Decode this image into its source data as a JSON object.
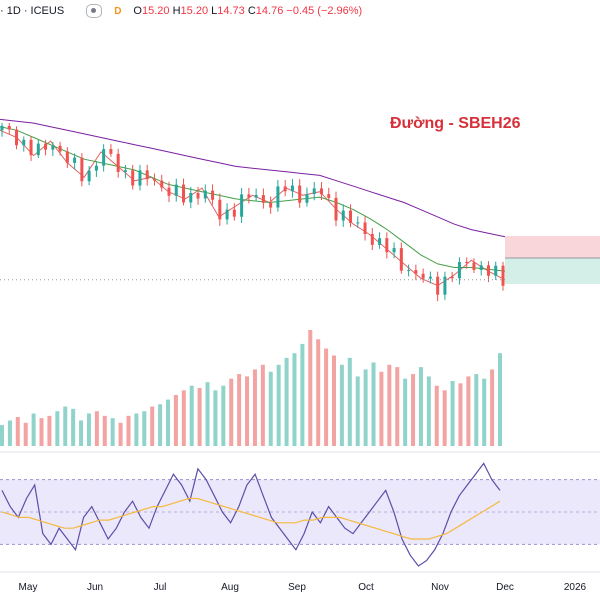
{
  "header": {
    "symbol": "· 1D · ICEUS",
    "badge": "D",
    "open_label": "O",
    "open": "15.20",
    "high_label": "H",
    "high": "15.20",
    "low_label": "L",
    "low": "14.73",
    "close_label": "C",
    "close": "14.76",
    "change": "−0.45 (−2.96%)"
  },
  "title": "Đường - SBEH26",
  "colors": {
    "up": "#26a69a",
    "down": "#ef5350",
    "ma_short": "#e06666",
    "ma_mid": "#43a047",
    "ma_long": "#7b1fa2",
    "rsi": "#5b4fa8",
    "rsi_ma": "#f5b940",
    "rsi_band": "#ece8fb"
  },
  "chart_data": [
    {
      "type": "candlestick",
      "title": "Đường - SBEH26",
      "x_tick_labels": [
        "May",
        "Jun",
        "Jul",
        "Aug",
        "Sep",
        "Oct",
        "Nov",
        "Dec",
        "2026"
      ],
      "series": [
        {
          "values": [
            18.9,
            18.7,
            18.2,
            18.6,
            18.0,
            17.6,
            18.3,
            17.9,
            17.5,
            17.6,
            17.2,
            17.0,
            17.3,
            16.5,
            16.8,
            17.1,
            16.9,
            17.3,
            17.1,
            17.2,
            16.7,
            16.3,
            16.0,
            15.6,
            15.2,
            14.8,
            14.6,
            14.9,
            15.3,
            15.0,
            14.76
          ]
        },
        {
          "values": [
            19.0,
            18.9,
            18.7,
            18.5,
            18.3,
            18.1,
            18.0,
            17.9,
            17.8,
            17.6,
            17.4,
            17.3,
            17.2,
            17.1,
            17.0,
            16.95,
            16.9,
            16.95,
            17.0,
            17.05,
            16.9,
            16.7,
            16.45,
            16.15,
            15.8,
            15.45,
            15.2,
            15.1,
            15.1,
            15.05,
            15.0
          ]
        },
        {
          "values": [
            19.2,
            19.15,
            19.1,
            19.0,
            18.9,
            18.8,
            18.7,
            18.6,
            18.5,
            18.4,
            18.3,
            18.2,
            18.1,
            18.0,
            17.9,
            17.85,
            17.8,
            17.75,
            17.7,
            17.65,
            17.5,
            17.35,
            17.2,
            17.05,
            16.9,
            16.7,
            16.5,
            16.3,
            16.15,
            16.05,
            15.95
          ]
        }
      ],
      "last_price": 14.76
    },
    {
      "type": "bar",
      "values": [
        18,
        22,
        25,
        20,
        28,
        24,
        26,
        30,
        34,
        32,
        22,
        28,
        30,
        26,
        24,
        20,
        26,
        28,
        30,
        34,
        36,
        40,
        44,
        48,
        52,
        50,
        55,
        48,
        52,
        58,
        62,
        60,
        66,
        70,
        64,
        70,
        76,
        80,
        88,
        100,
        92,
        84,
        78,
        70,
        76,
        60,
        66,
        72,
        64,
        70,
        68,
        58,
        62,
        68,
        60,
        52,
        48,
        56,
        54,
        60,
        62,
        58,
        66,
        80
      ]
    },
    {
      "type": "line",
      "ylim": [
        30,
        70
      ],
      "series": [
        {
          "values": [
            58,
            52,
            48,
            55,
            60,
            42,
            38,
            44,
            40,
            36,
            48,
            52,
            46,
            40,
            44,
            50,
            54,
            48,
            44,
            52,
            58,
            64,
            60,
            54,
            66,
            62,
            56,
            50,
            46,
            52,
            60,
            64,
            56,
            48,
            44,
            40,
            36,
            42,
            50,
            46,
            52,
            48,
            44,
            42,
            46,
            50,
            54,
            58,
            50,
            40,
            34,
            30,
            32,
            36,
            42,
            50,
            56,
            60,
            64,
            68,
            62,
            58
          ]
        },
        {
          "values": [
            50,
            49,
            48,
            48,
            47,
            46,
            45,
            44,
            44,
            45,
            46,
            47,
            47,
            48,
            49,
            50,
            51,
            52,
            52,
            53,
            54,
            55,
            55,
            54,
            53,
            52,
            51,
            50,
            49,
            48,
            47,
            46,
            46,
            46,
            47,
            47,
            48,
            48,
            48,
            47,
            46,
            45,
            44,
            43,
            42,
            41,
            40,
            40,
            40,
            41,
            42,
            44,
            46,
            48,
            50,
            52,
            54
          ]
        }
      ]
    }
  ]
}
